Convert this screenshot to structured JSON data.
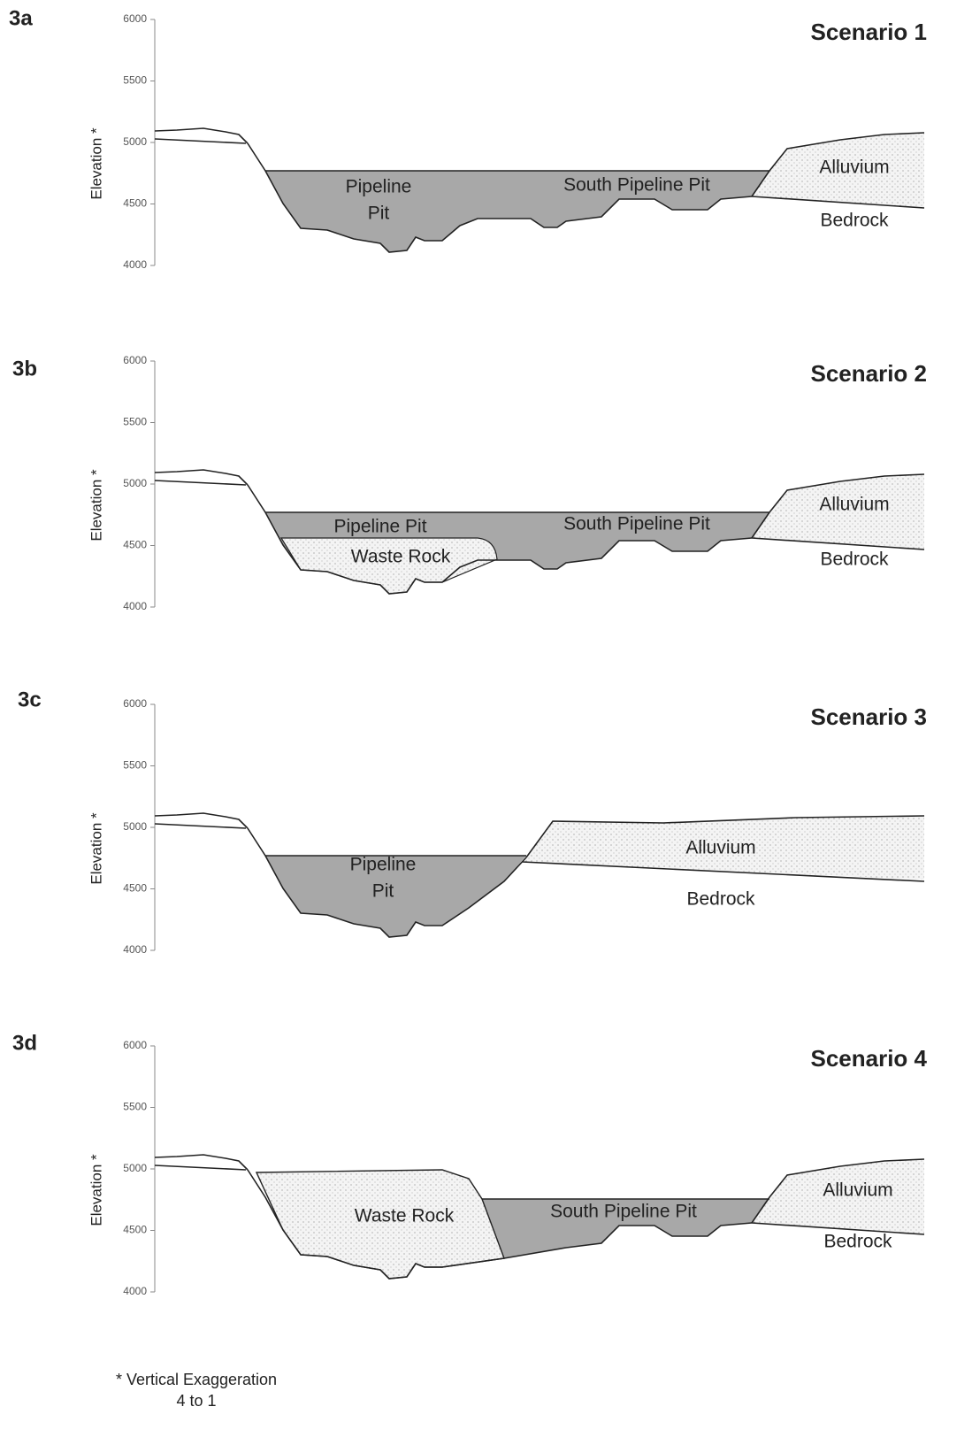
{
  "panels": [
    {
      "label": "3a",
      "title": "Scenario 1",
      "y_axis_label": "Elevation *",
      "yticks": [
        "6000",
        "5500",
        "5000",
        "4500",
        "4000"
      ],
      "regions": [
        "Pipeline",
        "Pit",
        "South Pipeline Pit",
        "Alluvium",
        "Bedrock"
      ]
    },
    {
      "label": "3b",
      "title": "Scenario 2",
      "y_axis_label": "Elevation *",
      "yticks": [
        "6000",
        "5500",
        "5000",
        "4500",
        "4000"
      ],
      "regions": [
        "Pipeline Pit",
        "Waste Rock",
        "South Pipeline Pit",
        "Alluvium",
        "Bedrock"
      ]
    },
    {
      "label": "3c",
      "title": "Scenario 3",
      "y_axis_label": "Elevation *",
      "yticks": [
        "6000",
        "5500",
        "5000",
        "4500",
        "4000"
      ],
      "regions": [
        "Pipeline",
        "Pit",
        "Alluvium",
        "Bedrock"
      ]
    },
    {
      "label": "3d",
      "title": "Scenario 4",
      "y_axis_label": "Elevation *",
      "yticks": [
        "6000",
        "5500",
        "5000",
        "4500",
        "4000"
      ],
      "regions": [
        "Waste Rock",
        "South Pipeline Pit",
        "Alluvium",
        "Bedrock"
      ]
    }
  ],
  "footnote": [
    "* Vertical Exaggeration",
    "4 to 1"
  ]
}
